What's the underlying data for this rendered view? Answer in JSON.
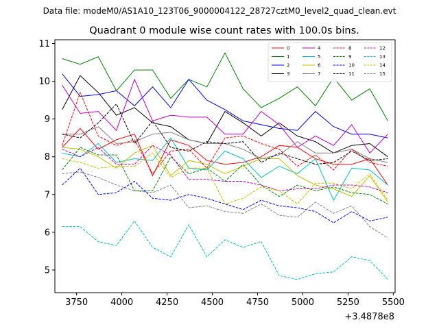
{
  "figure": {
    "suptitle": "Data file: modeM0/AS1A10_123T06_9000004122_28727cztM0_level2_quad_clean.evt",
    "title": "Quadrant 0 module wise count rates with 100.0s bins.",
    "offset_label": "+3.4878e8"
  },
  "chart_data": {
    "type": "line",
    "title": "Quadrant 0 module wise count rates with 100.0s bins.",
    "xlabel": "",
    "ylabel": "",
    "x_offset": "+3.4878e8",
    "xlim": [
      3630,
      5510
    ],
    "ylim": [
      4.4,
      11.1
    ],
    "xticks": [
      3750,
      4000,
      4250,
      4500,
      4750,
      5000,
      5250,
      5500
    ],
    "xtick_labels": [
      "3750",
      "4000",
      "4250",
      "4500",
      "4750",
      "5000",
      "5250",
      "5500"
    ],
    "yticks": [
      5,
      6,
      7,
      8,
      9,
      10,
      11
    ],
    "ytick_labels": [
      "5",
      "6",
      "7",
      "8",
      "9",
      "10",
      "11"
    ],
    "grid": false,
    "legend_position": "top-right",
    "x": [
      3670,
      3770,
      3870,
      3970,
      4070,
      4170,
      4270,
      4370,
      4470,
      4570,
      4670,
      4770,
      4870,
      4970,
      5070,
      5170,
      5270,
      5370,
      5470
    ],
    "series": [
      {
        "name": "0",
        "color": "#ff0000",
        "dash": "solid",
        "values": [
          8.25,
          8.75,
          8.2,
          8.45,
          8.6,
          7.5,
          8.45,
          8.3,
          7.9,
          7.8,
          7.85,
          8.0,
          8.3,
          8.25,
          7.95,
          7.8,
          7.8,
          7.95,
          7.25
        ]
      },
      {
        "name": "1",
        "color": "#008000",
        "dash": "solid",
        "values": [
          10.6,
          10.45,
          10.65,
          9.75,
          10.3,
          10.3,
          9.55,
          10.05,
          9.85,
          10.75,
          9.8,
          9.3,
          9.55,
          9.85,
          9.35,
          10.1,
          9.5,
          9.8,
          8.95
        ]
      },
      {
        "name": "2",
        "color": "#0000ff",
        "dash": "solid",
        "values": [
          10.2,
          9.6,
          9.65,
          9.75,
          9.35,
          9.85,
          9.3,
          10.05,
          9.5,
          9.25,
          8.95,
          8.85,
          8.75,
          8.7,
          9.2,
          8.8,
          8.6,
          8.6,
          8.5
        ]
      },
      {
        "name": "3",
        "color": "#000000",
        "dash": "solid",
        "values": [
          9.25,
          10.15,
          9.7,
          9.1,
          9.3,
          8.9,
          8.8,
          8.45,
          8.35,
          9.2,
          8.9,
          8.55,
          8.9,
          8.55,
          8.4,
          8.1,
          8.3,
          8.35,
          8.0
        ]
      },
      {
        "name": "4",
        "color": "#bf00bf",
        "dash": "solid",
        "values": [
          9.9,
          9.15,
          9.2,
          8.7,
          10.05,
          8.95,
          9.1,
          9.05,
          9.05,
          8.6,
          8.6,
          9.2,
          8.85,
          8.25,
          8.55,
          8.3,
          8.85,
          8.1,
          8.6
        ]
      },
      {
        "name": "5",
        "color": "#00bfbf",
        "dash": "solid",
        "values": [
          8.1,
          8.0,
          8.35,
          7.85,
          7.95,
          7.9,
          8.5,
          7.7,
          7.65,
          8.15,
          7.95,
          7.45,
          7.75,
          7.55,
          7.95,
          6.85,
          7.7,
          7.65,
          7.25
        ]
      },
      {
        "name": "6",
        "color": "#bfbf00",
        "dash": "solid",
        "values": [
          8.25,
          8.2,
          8.0,
          7.7,
          8.1,
          8.3,
          7.5,
          7.9,
          7.8,
          7.55,
          7.75,
          7.95,
          7.95,
          7.5,
          7.25,
          7.15,
          6.95,
          7.5,
          6.8
        ]
      },
      {
        "name": "7",
        "color": "#808080",
        "dash": "solid",
        "values": [
          8.6,
          8.6,
          8.8,
          8.35,
          8.4,
          8.6,
          8.65,
          8.45,
          8.35,
          8.35,
          8.2,
          7.95,
          8.05,
          8.4,
          8.1,
          8.1,
          8.2,
          7.95,
          7.85
        ]
      },
      {
        "name": "8",
        "color": "#ff0000",
        "dash": "dashed",
        "values": [
          8.3,
          9.7,
          8.55,
          8.3,
          8.45,
          7.55,
          8.15,
          8.2,
          7.7,
          8.5,
          8.55,
          8.35,
          8.2,
          7.75,
          8.05,
          7.65,
          8.2,
          7.85,
          7.75
        ]
      },
      {
        "name": "9",
        "color": "#008000",
        "dash": "dashed",
        "values": [
          7.65,
          8.25,
          8.05,
          8.05,
          7.1,
          7.1,
          8.0,
          7.55,
          7.7,
          7.35,
          7.8,
          7.25,
          6.95,
          7.25,
          7.1,
          7.2,
          7.05,
          7.0,
          6.75
        ]
      },
      {
        "name": "10",
        "color": "#0000ff",
        "dash": "dashed",
        "values": [
          7.25,
          7.7,
          7.0,
          7.05,
          7.35,
          6.9,
          6.85,
          7.0,
          6.9,
          6.75,
          6.6,
          6.85,
          6.7,
          6.65,
          6.55,
          6.25,
          6.55,
          6.3,
          6.4
        ]
      },
      {
        "name": "11",
        "color": "#000000",
        "dash": "dashed",
        "values": [
          8.6,
          8.5,
          8.9,
          9.4,
          8.35,
          8.95,
          8.25,
          8.15,
          8.4,
          8.35,
          8.4,
          7.85,
          8.1,
          7.95,
          7.8,
          7.85,
          8.15,
          7.9,
          7.95
        ]
      },
      {
        "name": "12",
        "color": "#bf00bf",
        "dash": "dashed",
        "values": [
          8.2,
          8.0,
          8.25,
          7.8,
          7.8,
          8.3,
          8.05,
          7.4,
          7.4,
          7.35,
          7.35,
          7.25,
          7.1,
          7.15,
          7.15,
          7.25,
          7.25,
          7.2,
          7.05
        ]
      },
      {
        "name": "13",
        "color": "#00bfbf",
        "dash": "dashed",
        "values": [
          6.15,
          6.15,
          5.75,
          5.65,
          6.3,
          5.6,
          5.35,
          6.2,
          5.35,
          5.8,
          5.6,
          5.75,
          4.85,
          4.75,
          4.9,
          4.95,
          5.35,
          5.25,
          4.75
        ]
      },
      {
        "name": "14",
        "color": "#bfbf00",
        "dash": "dashed",
        "values": [
          7.95,
          7.85,
          7.7,
          7.75,
          7.75,
          8.1,
          7.45,
          7.7,
          7.7,
          6.75,
          6.9,
          7.2,
          7.1,
          6.75,
          7.3,
          7.3,
          7.15,
          7.55,
          6.85
        ]
      },
      {
        "name": "15",
        "color": "#808080",
        "dash": "dashed",
        "values": [
          7.55,
          7.6,
          7.45,
          7.25,
          7.1,
          7.05,
          7.25,
          6.65,
          6.7,
          6.55,
          6.5,
          6.75,
          6.45,
          6.4,
          6.8,
          6.5,
          6.7,
          6.15,
          5.85
        ]
      }
    ]
  }
}
